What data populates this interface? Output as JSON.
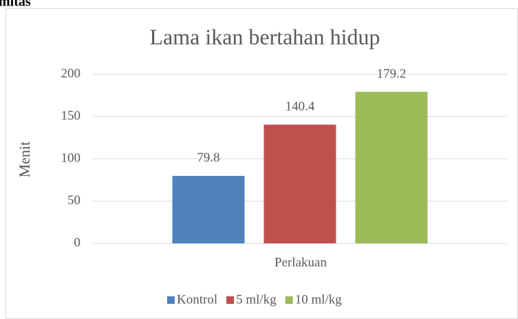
{
  "page_heading": "mitas",
  "chart_data": {
    "type": "bar",
    "title": "Lama ikan bertahan hidup",
    "xlabel": "Perlakuan",
    "ylabel": "Menit",
    "categories": [
      null
    ],
    "series": [
      {
        "name": "Kontrol",
        "color": "#4f81bd",
        "values": [
          79.8
        ]
      },
      {
        "name": "5 ml/kg",
        "color": "#c0504d",
        "values": [
          140.4
        ]
      },
      {
        "name": "10 ml/kg",
        "color": "#9bbb59",
        "values": [
          179.2
        ]
      }
    ],
    "ylim": [
      0,
      200
    ],
    "yticks": [
      0,
      50,
      100,
      150,
      200
    ],
    "grid": true,
    "legend": "bottom"
  }
}
